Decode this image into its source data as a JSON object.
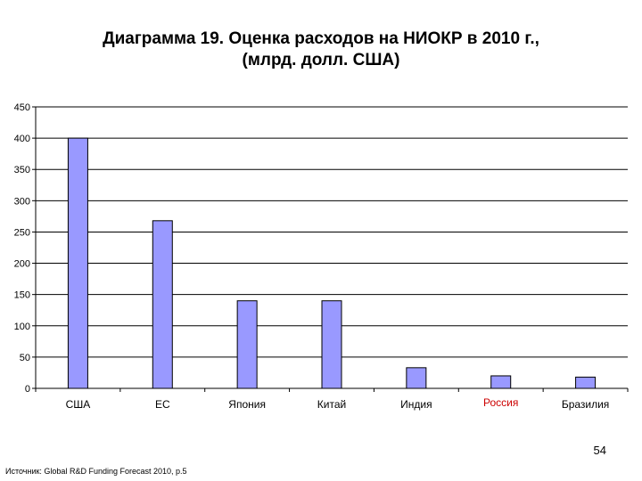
{
  "slide": {
    "title_line1": "Диаграмма 19. Оценка расходов на НИОКР в 2010 г.,",
    "title_line2": "(млрд. долл. США)",
    "page_number": "54",
    "source": "Источник: Global R&D Funding Forecast 2010, p.5"
  },
  "chart_data": {
    "type": "bar",
    "title": "Диаграмма 19. Оценка расходов на НИОКР в 2010 г., (млрд. долл. США)",
    "xlabel": "",
    "ylabel": "",
    "categories": [
      "США",
      "ЕС",
      "Япония",
      "Китай",
      "Индия",
      "Россия",
      "Бразилия"
    ],
    "values": [
      400,
      268,
      140,
      140,
      33,
      20,
      18
    ],
    "ylim": [
      0,
      450
    ],
    "yticks": [
      0,
      50,
      100,
      150,
      200,
      250,
      300,
      350,
      400,
      450
    ],
    "grid": true,
    "legend": "none",
    "colors": {
      "bar_fill": "#9999FF",
      "bar_stroke": "#000000",
      "grid": "#000000",
      "highlight_category_label": "#CC0000"
    },
    "highlighted_category": "Россия"
  }
}
